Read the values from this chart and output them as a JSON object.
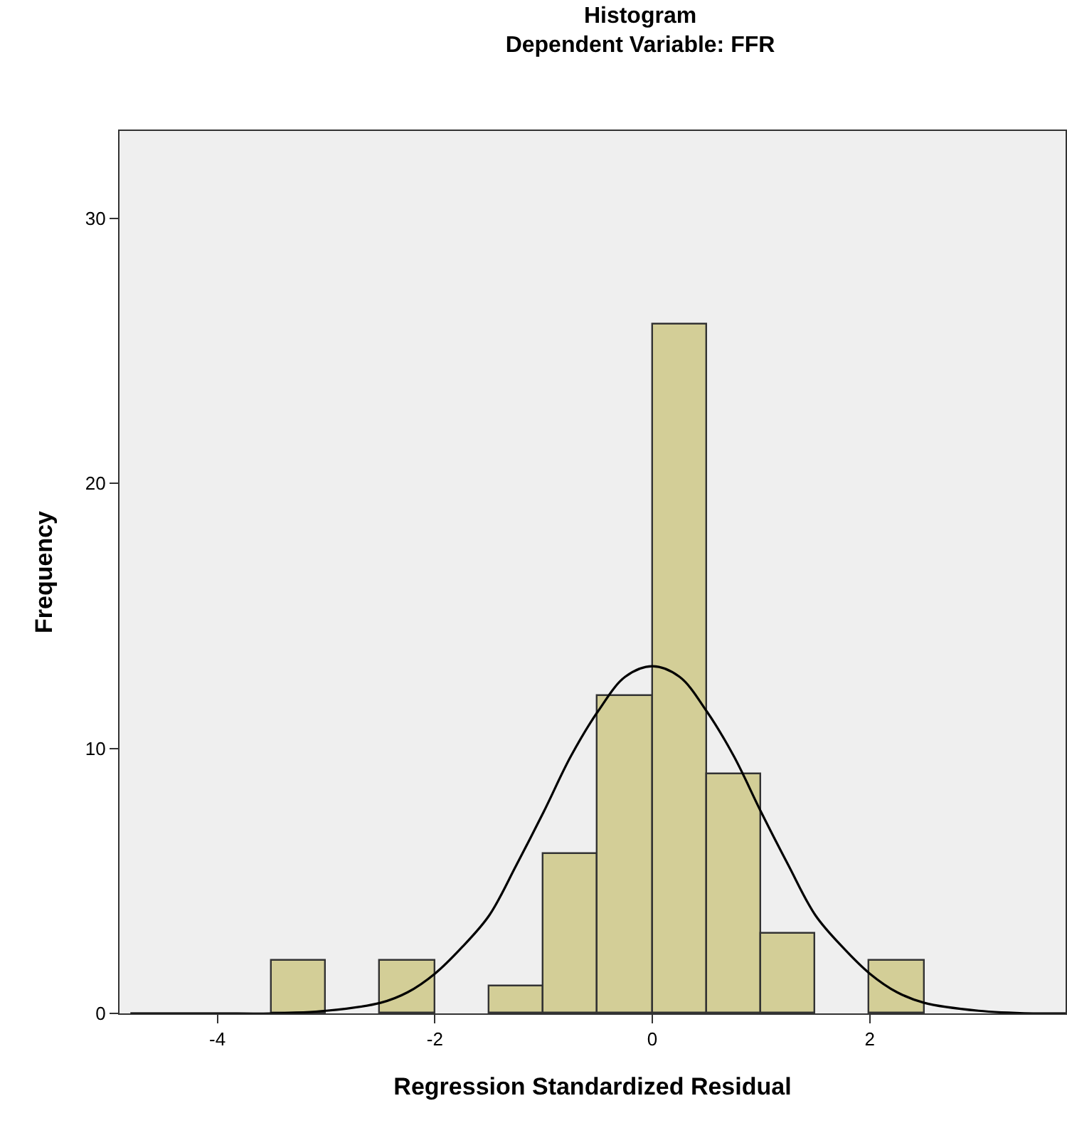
{
  "chart_data": {
    "type": "histogram",
    "title": "Histogram",
    "subtitle": "Dependent Variable: FFR",
    "xlabel": "Regression Standardized Residual",
    "ylabel": "Frequency",
    "bins": [
      -3.5,
      -3,
      -2.5,
      -2,
      -1.5,
      -1,
      -0.5,
      0,
      0.5,
      1,
      1.5,
      2,
      2.5
    ],
    "values": [
      2,
      0,
      2,
      0,
      1,
      6,
      12,
      26,
      9,
      3,
      0,
      2
    ],
    "color": "#d3ce97",
    "series": [
      {
        "type": "line",
        "color": "#000000",
        "x": [
          -4.8,
          -4,
          -3.5,
          -3,
          -2.5,
          -2.25,
          -2,
          -1.75,
          -1.5,
          -1.25,
          -1,
          -0.75,
          -0.5,
          -0.25,
          0,
          0.25,
          0.5,
          0.75,
          1,
          1.25,
          1.5,
          1.75,
          2,
          2.25,
          2.5,
          3,
          3.5,
          3.8
        ],
        "values": [
          0,
          0,
          0,
          0.1,
          0.4,
          0.8,
          1.5,
          2.5,
          3.7,
          5.6,
          7.6,
          9.7,
          11.4,
          12.7,
          13.1,
          12.7,
          11.4,
          9.7,
          7.6,
          5.6,
          3.7,
          2.5,
          1.5,
          0.8,
          0.4,
          0.1,
          0,
          0
        ]
      }
    ],
    "xlim": [
      -4.9,
      3.8
    ],
    "ylim": [
      0,
      33.3
    ],
    "xticks": [
      -4,
      -2,
      0,
      2
    ],
    "yticks": [
      0,
      10,
      20,
      30
    ],
    "grid": false
  }
}
